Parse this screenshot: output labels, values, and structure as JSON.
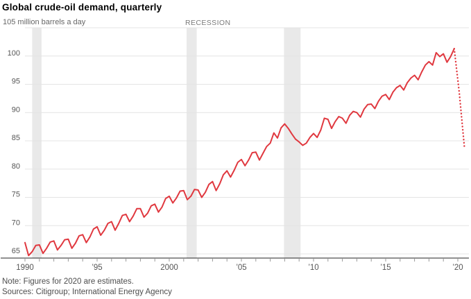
{
  "title": "Global crude-oil demand, quarterly",
  "axis_unit_label": "105 million barrels a day",
  "recession_label": "RECESSION",
  "note": "Note: Figures for 2020 are estimates.",
  "sources": "Sources: Citigroup; International Energy Agency",
  "colors": {
    "line": "#e0383f",
    "recession_band": "#e9e9e9",
    "gridline": "#e4e4e4",
    "axis": "#222222",
    "tick": "#999999",
    "tick_label": "#555555",
    "muted_text": "#666666"
  },
  "chart_data": {
    "type": "line",
    "title": "Global crude-oil demand, quarterly",
    "unit": "million barrels a day",
    "xlabel": "",
    "ylabel": "million barrels a day",
    "ylim": [
      64,
      105
    ],
    "x_range": [
      1990,
      2020.8
    ],
    "grid": true,
    "legend": false,
    "yticks": [
      65,
      70,
      75,
      80,
      85,
      90,
      95,
      100,
      105
    ],
    "xticks": [
      {
        "year": 1990,
        "label": "1990"
      },
      {
        "year": 1995,
        "label": "’95"
      },
      {
        "year": 2000,
        "label": "2000"
      },
      {
        "year": 2005,
        "label": "’05"
      },
      {
        "year": 2010,
        "label": "’10"
      },
      {
        "year": 2015,
        "label": "’15"
      },
      {
        "year": 2020,
        "label": "’20"
      }
    ],
    "minor_tick_every_years": 1,
    "recessions": [
      {
        "start": 1990.5,
        "end": 1991.15
      },
      {
        "start": 2001.2,
        "end": 2001.9
      },
      {
        "start": 2007.95,
        "end": 2009.1
      }
    ],
    "series": [
      {
        "name": "Global crude-oil demand",
        "style": "solid",
        "start_year": 1990,
        "points_per_year": 4,
        "values": [
          67.0,
          64.7,
          65.4,
          66.5,
          66.6,
          65.1,
          66.0,
          67.1,
          67.3,
          65.7,
          66.5,
          67.5,
          67.6,
          66.0,
          66.9,
          68.2,
          68.4,
          67.0,
          68.0,
          69.4,
          69.8,
          68.3,
          69.2,
          70.4,
          70.7,
          69.2,
          70.4,
          71.8,
          72.0,
          70.7,
          71.7,
          73.0,
          73.0,
          71.5,
          72.2,
          73.5,
          73.8,
          72.4,
          73.3,
          74.8,
          75.2,
          74.0,
          74.9,
          76.1,
          76.2,
          74.6,
          75.2,
          76.4,
          76.3,
          75.0,
          75.9,
          77.3,
          77.8,
          76.2,
          77.4,
          79.0,
          79.7,
          78.6,
          79.8,
          81.2,
          81.7,
          80.6,
          81.6,
          82.9,
          83.0,
          81.6,
          82.8,
          84.0,
          84.6,
          86.4,
          85.5,
          87.3,
          88.0,
          87.2,
          86.2,
          85.3,
          84.8,
          84.2,
          84.6,
          85.6,
          86.3,
          85.6,
          86.9,
          89.0,
          88.8,
          87.2,
          88.4,
          89.3,
          89.0,
          88.1,
          89.5,
          90.2,
          90.0,
          89.2,
          90.6,
          91.4,
          91.5,
          90.7,
          92.0,
          92.9,
          93.2,
          92.3,
          93.6,
          94.4,
          94.8,
          94.0,
          95.3,
          96.1,
          96.6,
          95.8,
          97.2,
          98.4,
          99.0,
          98.4,
          100.6,
          99.9,
          100.4,
          98.9,
          99.9,
          101.3
        ]
      },
      {
        "name": "2020 estimates",
        "style": "dotted",
        "points": [
          [
            2019.75,
            101.3
          ],
          [
            2020.1,
            93.5
          ],
          [
            2020.45,
            84.0
          ]
        ]
      }
    ]
  }
}
